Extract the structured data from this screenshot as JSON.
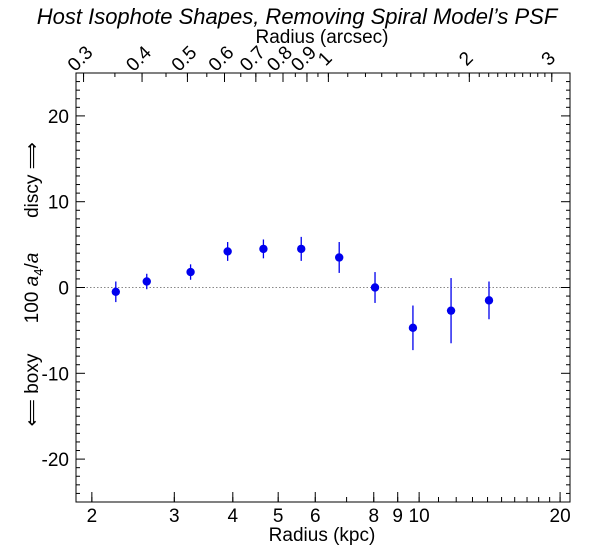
{
  "chart_data": {
    "type": "scatter",
    "title": "Host Isophote Shapes, Removing Spiral Model’s PSF",
    "xlabel": "Radius (kpc)",
    "x2label": "Radius (arcsec)",
    "ylabel_main": "100 a4/a",
    "ylabel_parts": {
      "prefix": "100 ",
      "a": "a",
      "sub": "4",
      "slash": "/",
      "a2": "a"
    },
    "ylabel_top": "discy ⟹",
    "ylabel_bottom": "⟸ boxy",
    "x_scale": "log",
    "xlim": [
      1.85,
      21
    ],
    "ylim": [
      -25,
      25
    ],
    "x_ticks": [
      {
        "value": 2,
        "label": "2"
      },
      {
        "value": 3,
        "label": "3"
      },
      {
        "value": 4,
        "label": "4"
      },
      {
        "value": 5,
        "label": "5"
      },
      {
        "value": 6,
        "label": "6"
      },
      {
        "value": 8,
        "label": "8"
      },
      {
        "value": 9,
        "label": "9"
      },
      {
        "value": 10,
        "label": "10"
      },
      {
        "value": 20,
        "label": "20"
      }
    ],
    "x2_ticks": [
      {
        "label": "0.3",
        "kpc": 1.92
      },
      {
        "label": "0.4",
        "kpc": 2.56
      },
      {
        "label": "0.5",
        "kpc": 3.2
      },
      {
        "label": "0.6",
        "kpc": 3.84
      },
      {
        "label": "0.7",
        "kpc": 4.48
      },
      {
        "label": "0.8",
        "kpc": 5.12
      },
      {
        "label": "0.9",
        "kpc": 5.76
      },
      {
        "label": "1",
        "kpc": 6.4
      },
      {
        "label": "2",
        "kpc": 12.8
      },
      {
        "label": "3",
        "kpc": 19.2
      }
    ],
    "y_ticks": [
      {
        "value": 20,
        "label": "20"
      },
      {
        "value": 10,
        "label": "10"
      },
      {
        "value": 0,
        "label": "0"
      },
      {
        "value": -10,
        "label": "-10"
      },
      {
        "value": -20,
        "label": "-20"
      }
    ],
    "reference_line": {
      "y": 0,
      "style": "dotted",
      "color": "#888888"
    },
    "series": [
      {
        "color": "#0000ee",
        "points": [
          {
            "x": 2.25,
            "y": -0.5,
            "yerr": 1.2
          },
          {
            "x": 2.62,
            "y": 0.7,
            "yerr": 0.9
          },
          {
            "x": 3.25,
            "y": 1.8,
            "yerr": 0.9
          },
          {
            "x": 3.9,
            "y": 4.2,
            "yerr": 1.1
          },
          {
            "x": 4.65,
            "y": 4.5,
            "yerr": 1.1
          },
          {
            "x": 5.6,
            "y": 4.5,
            "yerr": 1.4
          },
          {
            "x": 6.75,
            "y": 3.5,
            "yerr": 1.8
          },
          {
            "x": 8.05,
            "y": 0.0,
            "yerr": 1.8
          },
          {
            "x": 9.7,
            "y": -4.7,
            "yerr": 2.6
          },
          {
            "x": 11.7,
            "y": -2.7,
            "yerr": 3.8
          },
          {
            "x": 14.1,
            "y": -1.5,
            "yerr": 2.2
          }
        ]
      }
    ]
  }
}
